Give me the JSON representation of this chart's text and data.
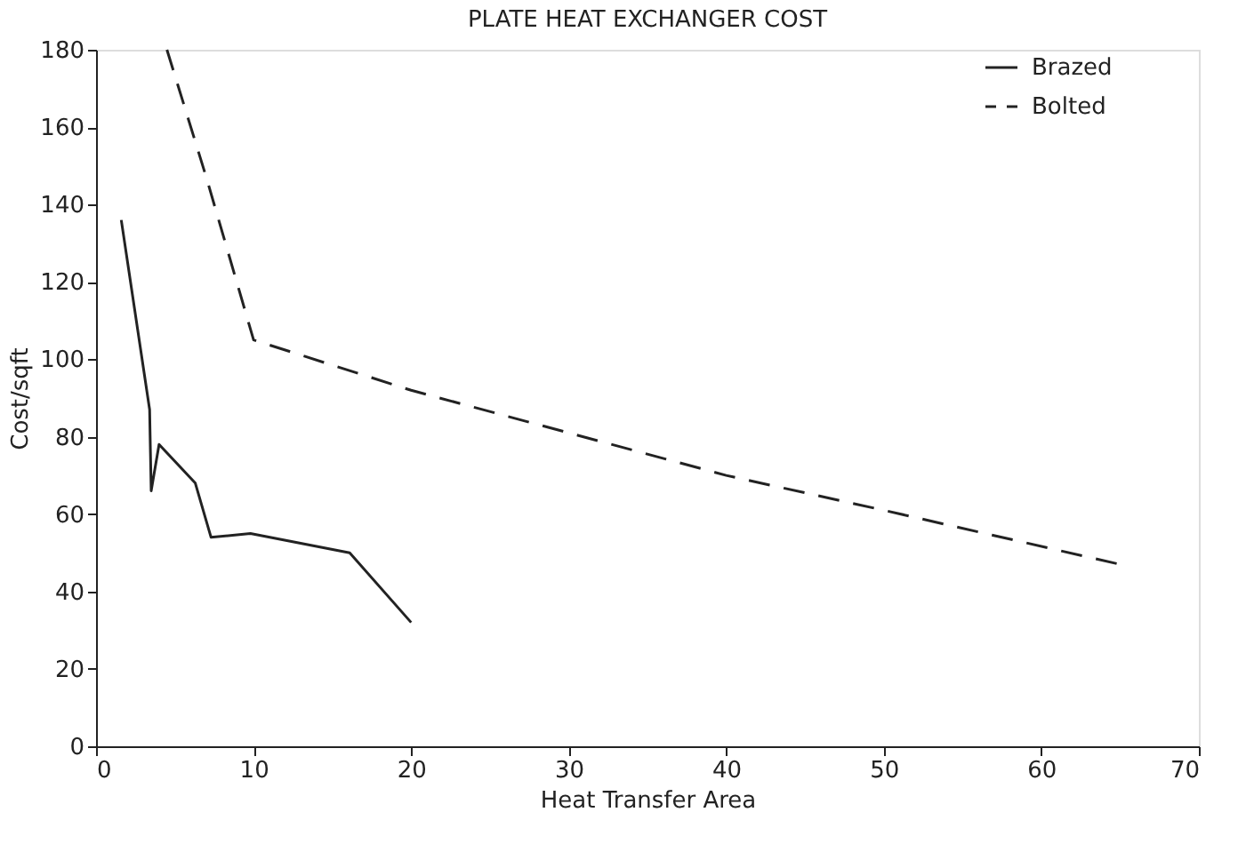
{
  "chart_data": {
    "type": "line",
    "title": "PLATE HEAT EXCHANGER COST",
    "xlabel": "Heat Transfer Area",
    "ylabel": "Cost/sqft",
    "xlim": [
      0,
      70
    ],
    "xticks": [
      0,
      10,
      20,
      30,
      40,
      50,
      60,
      70
    ],
    "ylim": [
      0,
      180
    ],
    "yticks": [
      0,
      20,
      40,
      60,
      80,
      100,
      120,
      140,
      160,
      180
    ],
    "grid": false,
    "legend": "top right",
    "marker": "none",
    "series": [
      {
        "name": "Brazed",
        "color": "#222222",
        "line_style": "solid",
        "x": [
          1.6,
          3.4,
          3.5,
          4.0,
          6.3,
          7.3,
          9.8,
          16.1,
          20.0
        ],
        "values": [
          136,
          87,
          66,
          78,
          68,
          54,
          55,
          50,
          32
        ]
      },
      {
        "name": "Bolted",
        "color": "#222222",
        "line_style": "dashed",
        "x": [
          4.5,
          7,
          10,
          20,
          30,
          40,
          50,
          65
        ],
        "values": [
          180,
          147,
          105,
          92,
          81,
          70,
          61,
          47
        ]
      }
    ]
  }
}
